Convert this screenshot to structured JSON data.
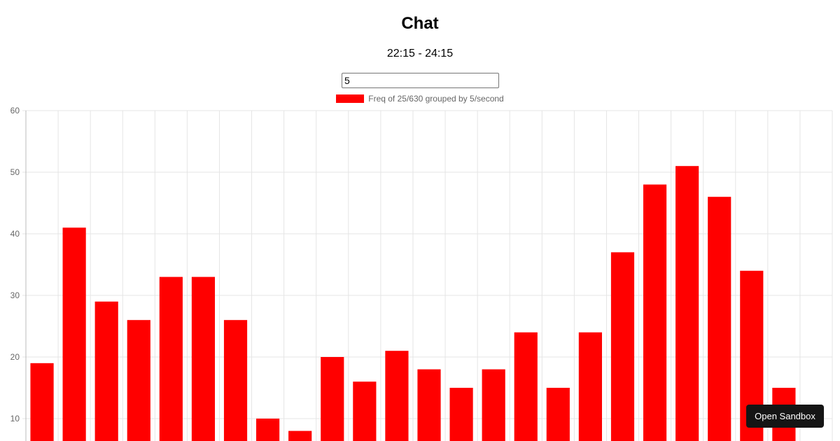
{
  "header": {
    "title": "Chat",
    "subtitle": "22:15 - 24:15"
  },
  "group_input": {
    "value": "5"
  },
  "sandbox_button": {
    "label": "Open Sandbox"
  },
  "chart_data": {
    "type": "bar",
    "title": "Chat",
    "subtitle": "22:15 - 24:15",
    "series": [
      {
        "name": "Freq of 25/630 grouped by 5/second",
        "color": "#ff0000",
        "values": [
          19,
          41,
          29,
          26,
          33,
          33,
          26,
          10,
          8,
          20,
          16,
          21,
          18,
          15,
          18,
          24,
          15,
          24,
          37,
          48,
          51,
          46,
          34,
          15
        ]
      }
    ],
    "y_ticks": [
      10,
      20,
      30,
      40,
      50,
      60
    ],
    "ylim": [
      6,
      60
    ],
    "grid": true,
    "legend_position": "top"
  }
}
